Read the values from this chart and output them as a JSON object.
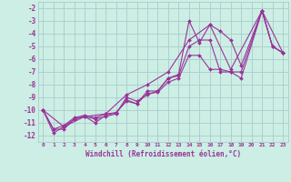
{
  "background_color": "#cceee4",
  "grid_color": "#aacccc",
  "line_color": "#993399",
  "xlabel": "Windchill (Refroidissement éolien,°C)",
  "xlim": [
    -0.5,
    23.5
  ],
  "ylim": [
    -12.5,
    -1.5
  ],
  "xticks": [
    0,
    1,
    2,
    3,
    4,
    5,
    6,
    7,
    8,
    9,
    10,
    11,
    12,
    13,
    14,
    15,
    16,
    17,
    18,
    19,
    20,
    21,
    22,
    23
  ],
  "yticks": [
    -2,
    -3,
    -4,
    -5,
    -6,
    -7,
    -8,
    -9,
    -10,
    -11,
    -12
  ],
  "series": [
    {
      "x": [
        0,
        1,
        2,
        3,
        4,
        5,
        6,
        7,
        8,
        9,
        10,
        11,
        12,
        13,
        14,
        15,
        16,
        17,
        18,
        19,
        21,
        22,
        23
      ],
      "y": [
        -10.0,
        -11.5,
        -11.5,
        -10.7,
        -10.5,
        -10.7,
        -10.5,
        -10.3,
        -9.0,
        -9.3,
        -8.8,
        -8.5,
        -7.5,
        -7.3,
        -5.0,
        -4.5,
        -4.5,
        -7.0,
        -7.0,
        -7.0,
        -2.2,
        -5.0,
        -5.5
      ]
    },
    {
      "x": [
        0,
        1,
        2,
        3,
        4,
        5,
        6,
        7,
        8,
        9,
        10,
        11,
        12,
        13,
        14,
        15,
        16,
        17,
        18,
        19,
        21,
        22,
        23
      ],
      "y": [
        -10.0,
        -11.8,
        -11.3,
        -10.7,
        -10.5,
        -11.0,
        -10.4,
        -10.2,
        -9.3,
        -9.5,
        -8.7,
        -8.6,
        -7.8,
        -7.5,
        -5.7,
        -5.7,
        -6.8,
        -6.8,
        -7.0,
        -7.5,
        -2.2,
        -5.0,
        -5.5
      ]
    },
    {
      "x": [
        0,
        1,
        2,
        3,
        4,
        5,
        6,
        7,
        8,
        9,
        10,
        11,
        12,
        13,
        14,
        15,
        16,
        17,
        18,
        19,
        21,
        22,
        23
      ],
      "y": [
        -10.0,
        -11.5,
        -11.2,
        -10.6,
        -10.4,
        -10.6,
        -10.3,
        -10.2,
        -9.2,
        -9.5,
        -8.5,
        -8.5,
        -7.5,
        -7.2,
        -3.0,
        -4.7,
        -3.3,
        -3.8,
        -4.5,
        -6.5,
        -2.2,
        -5.0,
        -5.5
      ]
    },
    {
      "x": [
        0,
        2,
        4,
        6,
        8,
        10,
        12,
        14,
        16,
        18,
        21,
        23
      ],
      "y": [
        -10.0,
        -11.3,
        -10.5,
        -10.3,
        -8.8,
        -8.0,
        -7.0,
        -4.5,
        -3.3,
        -6.8,
        -2.2,
        -5.5
      ]
    }
  ]
}
